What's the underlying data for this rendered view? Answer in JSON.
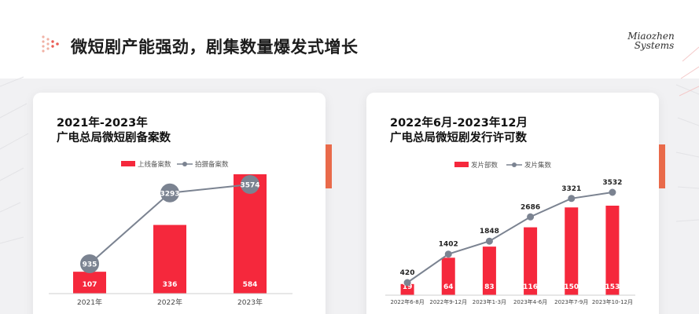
{
  "page": {
    "title": "微短剧产能强劲，剧集数量爆发式增长",
    "brand_line1": "Miaozhen",
    "brand_line2": "Systems",
    "accent_color": "#f5283c",
    "line_color": "#7b8391"
  },
  "chart_data": [
    {
      "type": "bar",
      "title_line1": "2021年-2023年",
      "title_line2": "广电总局微短剧备案数",
      "categories": [
        "2021年",
        "2022年",
        "2023年"
      ],
      "series": [
        {
          "name": "上线备案数",
          "type": "bar",
          "color": "#f5283c",
          "values": [
            107,
            336,
            584
          ]
        },
        {
          "name": "拍摄备案数",
          "type": "line",
          "color": "#7b8391",
          "values": [
            935,
            3293,
            3574
          ]
        }
      ],
      "legend_position": "top",
      "grid": false
    },
    {
      "type": "bar",
      "title_line1": "2022年6月-2023年12月",
      "title_line2": "广电总局微短剧发行许可数",
      "categories": [
        "2022年6-8月",
        "2022年9-12月",
        "2023年1-3月",
        "2023年4-6月",
        "2023年7-9月",
        "2023年10-12月"
      ],
      "series": [
        {
          "name": "发片部数",
          "type": "bar",
          "color": "#f5283c",
          "values": [
            19,
            64,
            83,
            116,
            150,
            153
          ]
        },
        {
          "name": "发片集数",
          "type": "line",
          "color": "#7b8391",
          "values": [
            420,
            1402,
            1848,
            2686,
            3321,
            3532
          ]
        }
      ],
      "legend_position": "top",
      "grid": false
    }
  ]
}
